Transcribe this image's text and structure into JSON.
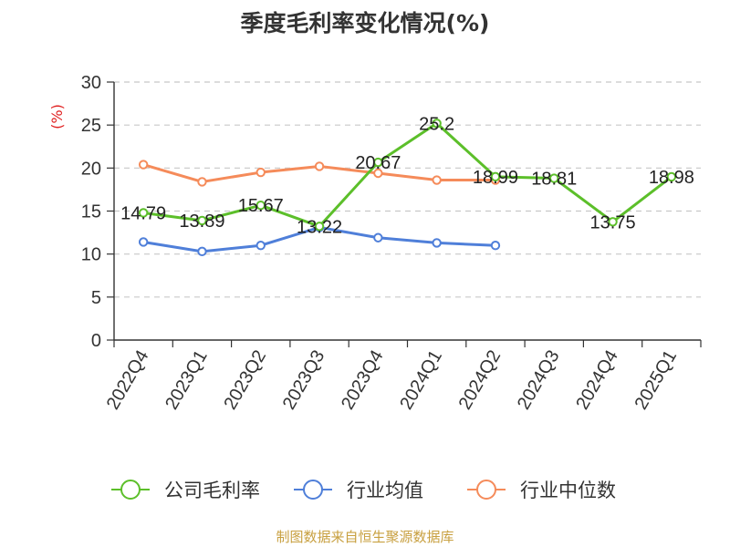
{
  "chart_data": {
    "type": "line",
    "title": "季度毛利率变化情况(%)",
    "ylabel": "(%)",
    "xlabel": "",
    "ylim": [
      0,
      30
    ],
    "yticks": [
      0,
      5,
      10,
      15,
      20,
      25,
      30
    ],
    "grid": true,
    "legend_position": "bottom",
    "categories": [
      "2022Q4",
      "2023Q1",
      "2023Q2",
      "2023Q3",
      "2023Q4",
      "2024Q1",
      "2024Q2",
      "2024Q3",
      "2024Q4",
      "2025Q1"
    ],
    "series": [
      {
        "name": "公司毛利率",
        "color": "#5cbf2a",
        "values": [
          14.79,
          13.89,
          15.67,
          13.22,
          20.67,
          25.2,
          18.99,
          18.81,
          13.75,
          18.98
        ],
        "labels": [
          "14.79",
          "13.89",
          "15.67",
          "13.22",
          "20.67",
          "25.2",
          "18.99",
          "18.81",
          "13.75",
          "18.98"
        ]
      },
      {
        "name": "行业均值",
        "color": "#4f7fd9",
        "values": [
          11.4,
          10.3,
          11.0,
          13.1,
          11.9,
          11.3,
          11.0,
          null,
          null,
          null
        ]
      },
      {
        "name": "行业中位数",
        "color": "#f58b5a",
        "values": [
          20.4,
          18.4,
          19.5,
          20.2,
          19.4,
          18.6,
          18.6,
          null,
          null,
          null
        ]
      }
    ]
  },
  "footer": {
    "source": "制图数据来自恒生聚源数据库",
    "source_color": "#c8a040"
  }
}
